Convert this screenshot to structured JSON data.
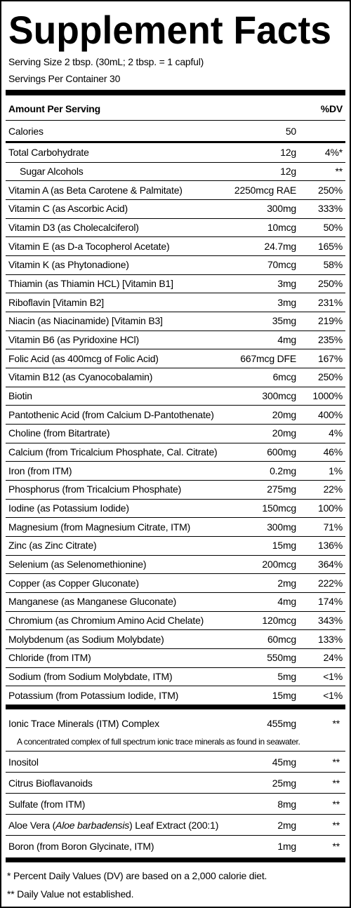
{
  "header": {
    "title": "Supplement Facts",
    "serving_size": "Serving Size 2 tbsp. (30mL; 2 tbsp. = 1 capful)",
    "servings_per_container": "Servings Per Container 30"
  },
  "table": {
    "columns": [
      "Amount Per Serving",
      "%DV"
    ],
    "calories": {
      "name": "Calories",
      "amount": "50"
    },
    "rows": [
      {
        "name": "Total Carbohydrate",
        "amount": "12g",
        "dv": "4%*"
      },
      {
        "name": "Sugar Alcohols",
        "amount": "12g",
        "dv": "**",
        "indent": true
      },
      {
        "name": "Vitamin A (as Beta Carotene & Palmitate)",
        "amount": "2250mcg RAE",
        "dv": "250%"
      },
      {
        "name": "Vitamin C (as Ascorbic Acid)",
        "amount": "300mg",
        "dv": "333%"
      },
      {
        "name": "Vitamin D3 (as Cholecalciferol)",
        "amount": "10mcg",
        "dv": "50%"
      },
      {
        "name": "Vitamin E (as D-a Tocopherol Acetate)",
        "amount": "24.7mg",
        "dv": "165%"
      },
      {
        "name": "Vitamin K (as Phytonadione)",
        "amount": "70mcg",
        "dv": "58%"
      },
      {
        "name": "Thiamin (as Thiamin HCL) [Vitamin B1]",
        "amount": "3mg",
        "dv": "250%"
      },
      {
        "name": "Riboflavin [Vitamin B2]",
        "amount": "3mg",
        "dv": "231%"
      },
      {
        "name": "Niacin (as Niacinamide) [Vitamin B3]",
        "amount": "35mg",
        "dv": "219%"
      },
      {
        "name": "Vitamin B6 (as Pyridoxine HCl)",
        "amount": "4mg",
        "dv": "235%"
      },
      {
        "name": "Folic Acid (as 400mcg of Folic Acid)",
        "amount": "667mcg DFE",
        "dv": "167%"
      },
      {
        "name": "Vitamin B12 (as Cyanocobalamin)",
        "amount": "6mcg",
        "dv": "250%"
      },
      {
        "name": "Biotin",
        "amount": "300mcg",
        "dv": "1000%"
      },
      {
        "name": "Pantothenic Acid (from Calcium D-Pantothenate)",
        "amount": "20mg",
        "dv": "400%"
      },
      {
        "name": "Choline (from Bitartrate)",
        "amount": "20mg",
        "dv": "4%"
      },
      {
        "name": "Calcium (from Tricalcium Phosphate, Cal. Citrate)",
        "amount": "600mg",
        "dv": "46%"
      },
      {
        "name": "Iron (from ITM)",
        "amount": "0.2mg",
        "dv": "1%"
      },
      {
        "name": "Phosphorus (from Tricalcium Phosphate)",
        "amount": "275mg",
        "dv": "22%"
      },
      {
        "name": "Iodine (as Potassium Iodide)",
        "amount": "150mcg",
        "dv": "100%"
      },
      {
        "name": "Magnesium (from Magnesium Citrate, ITM)",
        "amount": "300mg",
        "dv": "71%"
      },
      {
        "name": "Zinc (as Zinc Citrate)",
        "amount": "15mg",
        "dv": "136%"
      },
      {
        "name": "Selenium (as Selenomethionine)",
        "amount": "200mcg",
        "dv": "364%"
      },
      {
        "name": "Copper (as Copper Gluconate)",
        "amount": "2mg",
        "dv": "222%"
      },
      {
        "name": "Manganese (as Manganese Gluconate)",
        "amount": "4mg",
        "dv": "174%"
      },
      {
        "name": "Chromium (as Chromium Amino Acid Chelate)",
        "amount": "120mcg",
        "dv": "343%"
      },
      {
        "name": "Molybdenum (as Sodium Molybdate)",
        "amount": "60mcg",
        "dv": "133%"
      },
      {
        "name": "Chloride (from ITM)",
        "amount": "550mg",
        "dv": "24%"
      },
      {
        "name": "Sodium (from Sodium Molybdate, ITM)",
        "amount": "5mg",
        "dv": "<1%"
      },
      {
        "name": "Potassium (from Potassium Iodide, ITM)",
        "amount": "15mg",
        "dv": "<1%"
      }
    ],
    "complex": {
      "name": "Ionic Trace Minerals (ITM) Complex",
      "amount": "455mg",
      "dv": "**",
      "note": "A concentrated complex of full spectrum ionic trace minerals as found in seawater."
    },
    "other_rows": [
      {
        "name": "Inositol",
        "amount": "45mg",
        "dv": "**"
      },
      {
        "name": "Citrus Bioflavanoids",
        "amount": "25mg",
        "dv": "**"
      },
      {
        "name": "Sulfate (from ITM)",
        "amount": "8mg",
        "dv": "**"
      },
      {
        "name": [
          {
            "text": "Aloe Vera ("
          },
          {
            "text": "Aloe barbadensis",
            "italic": true
          },
          {
            "text": ") Leaf Extract (200:1)"
          }
        ],
        "amount": "2mg",
        "dv": "**"
      },
      {
        "name": "Boron (from Boron Glycinate, ITM)",
        "amount": "1mg",
        "dv": "**"
      }
    ]
  },
  "footnotes": [
    "* Percent Daily Values (DV) are based on a 2,000 calorie diet.",
    "** Daily Value not established."
  ]
}
